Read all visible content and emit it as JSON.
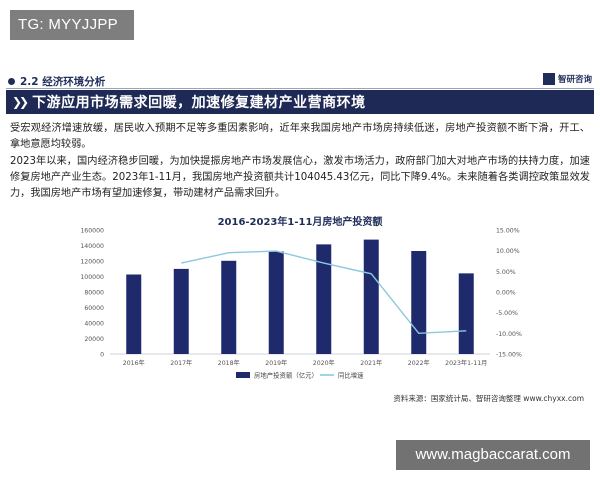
{
  "overlay_tag": "TG: MYYJJPP",
  "overlay_site": "www.magbaccarat.com",
  "section": {
    "title": "2.2 经济环境分析",
    "brand": "智研咨询"
  },
  "banner": {
    "title": "下游应用市场需求回暖，加速修复建材产业营商环境"
  },
  "paragraphs": {
    "p1": "受宏观经济增速放缓，居民收入预期不足等多重因素影响，近年来我国房地产市场房持续低迷，房地产投资额不断下滑，开工、拿地意愿均较弱。",
    "p2": "2023年以来，国内经济稳步回暖，为加快提振房地产市场发展信心，激发市场活力，政府部门加大对地产市场的扶持力度，加速修复房地产产业生态。2023年1-11月，我国房地产投资额共计104045.43亿元，同比下降9.4%。未来随着各类调控政策显效发力，我国房地产市场有望加速修复，带动建材产品需求回升。"
  },
  "chart_data": {
    "type": "bar",
    "title": "2016-2023年1-11月房地产投资额",
    "categories": [
      "2016年",
      "2017年",
      "2018年",
      "2019年",
      "2020年",
      "2021年",
      "2022年",
      "2023年1-11月"
    ],
    "series": [
      {
        "name": "房地产投资额（亿元）",
        "type": "bar",
        "axis": "left",
        "color": "#1e2a6b",
        "values": [
          102581,
          109799,
          120264,
          132194,
          141443,
          147602,
          132895,
          104045
        ]
      },
      {
        "name": "同比增速",
        "type": "line",
        "axis": "right",
        "color": "#8ec8dc",
        "values": [
          6.9,
          7.0,
          9.5,
          9.9,
          7.0,
          4.4,
          -10.0,
          -9.4
        ]
      }
    ],
    "y_left": {
      "min": 0,
      "max": 160000,
      "step": 20000,
      "ticks": [
        "0",
        "20000",
        "40000",
        "60000",
        "80000",
        "100000",
        "120000",
        "140000",
        "160000"
      ]
    },
    "y_right": {
      "min": -15,
      "max": 15,
      "step": 5,
      "ticks": [
        "-15.00%",
        "-10.00%",
        "-5.00%",
        "0.00%",
        "5.00%",
        "10.00%",
        "15.00%"
      ]
    },
    "legend_position": "bottom",
    "grid": false
  },
  "source": "资料来源：国家统计局、智研咨询整理 www.chyxx.com"
}
